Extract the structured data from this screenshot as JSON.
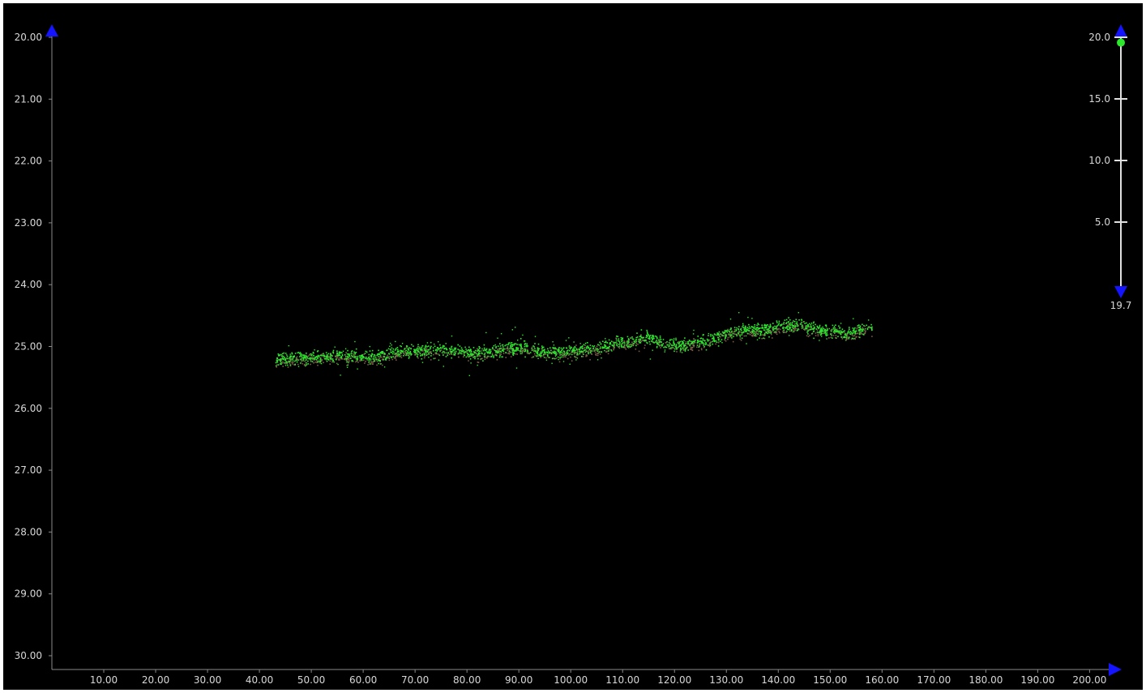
{
  "chart_data": {
    "type": "scatter",
    "x_ticks": [
      "10.00",
      "20.00",
      "30.00",
      "40.00",
      "50.00",
      "60.00",
      "70.00",
      "80.00",
      "90.00",
      "100.00",
      "110.00",
      "120.00",
      "130.00",
      "140.00",
      "150.00",
      "160.00",
      "170.00",
      "180.00",
      "190.00",
      "200.00"
    ],
    "y_ticks": [
      "20.00",
      "21.00",
      "22.00",
      "23.00",
      "24.00",
      "25.00",
      "26.00",
      "27.00",
      "28.00",
      "29.00",
      "30.00"
    ],
    "xlim": [
      0,
      204
    ],
    "ylim_top_to_bottom": [
      20,
      30
    ],
    "y_axis_inverted": true,
    "grid": false,
    "point_colors": {
      "primary": "#2ee82e",
      "secondary": "#7a5a48"
    },
    "trend": [
      {
        "x": 43,
        "y": 25.22
      },
      {
        "x": 48,
        "y": 25.18
      },
      {
        "x": 55,
        "y": 25.14
      },
      {
        "x": 62,
        "y": 25.17
      },
      {
        "x": 68,
        "y": 25.07
      },
      {
        "x": 75,
        "y": 25.04
      },
      {
        "x": 82,
        "y": 25.1
      },
      {
        "x": 90,
        "y": 25.02
      },
      {
        "x": 97,
        "y": 25.09
      },
      {
        "x": 104,
        "y": 25.04
      },
      {
        "x": 110,
        "y": 24.92
      },
      {
        "x": 115,
        "y": 24.86
      },
      {
        "x": 120,
        "y": 24.98
      },
      {
        "x": 125,
        "y": 24.93
      },
      {
        "x": 131,
        "y": 24.76
      },
      {
        "x": 137,
        "y": 24.72
      },
      {
        "x": 143,
        "y": 24.64
      },
      {
        "x": 148,
        "y": 24.72
      },
      {
        "x": 153,
        "y": 24.78
      },
      {
        "x": 158,
        "y": 24.68
      }
    ]
  },
  "scale_bar": {
    "ticks": [
      "20.0",
      "15.0",
      "10.0",
      "5.0"
    ],
    "tick_values": [
      20,
      15,
      10,
      5
    ],
    "range": [
      0,
      20
    ],
    "current_value": 19.7,
    "marker_value": 19.7,
    "bottom_label": "19.7",
    "marker_color": "#2ee82e",
    "arrow_color": "#1414ff"
  }
}
